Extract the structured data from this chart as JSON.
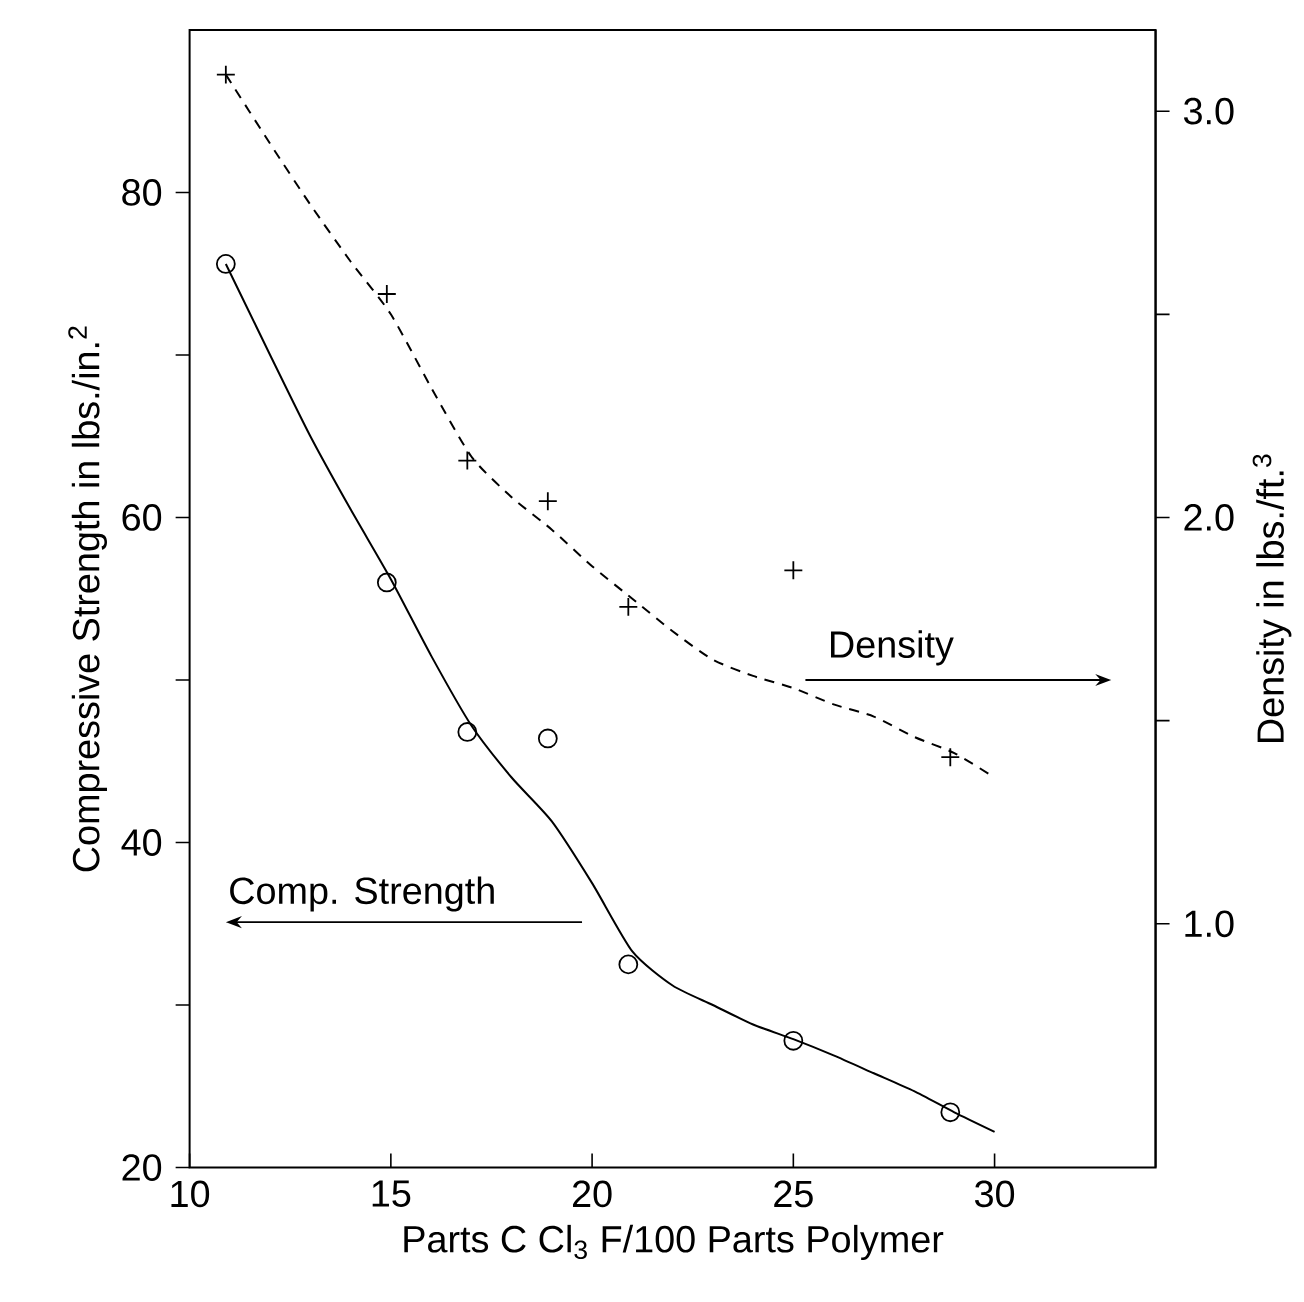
{
  "chart_data": {
    "type": "scatter",
    "xlabel": "Parts C Cl$_{3}$ F/100 Parts Polymer",
    "ylabel": "Compressive  Strength in lbs./in.$^{2}$",
    "y2label": "Density in lbs./ft.$^{3}$",
    "xlim": [
      10,
      34
    ],
    "xticks": [
      10,
      15,
      20,
      25,
      30
    ],
    "ylim": [
      20,
      90
    ],
    "yticks": [
      20,
      {
        "value": 30,
        "label": null
      },
      40,
      {
        "value": 50,
        "label": null
      },
      60,
      {
        "value": 70,
        "label": null
      },
      80
    ],
    "y2lim": [
      0.4,
      3.2
    ],
    "y2ticks": [
      {
        "value": 1.0,
        "label": "1.0"
      },
      {
        "value": 1.5,
        "label": null
      },
      {
        "value": 2.0,
        "label": "2.0"
      },
      {
        "value": 2.5,
        "label": null
      },
      {
        "value": 3.0,
        "label": "3.0"
      }
    ],
    "grid": false,
    "annotations": [
      "Comp. Strength",
      "Density"
    ],
    "series": [
      {
        "marker": "circle",
        "color": "#000000",
        "x": [
          10.9,
          14.9,
          16.9,
          18.9,
          20.9,
          25,
          28.9
        ],
        "values": [
          75.6,
          56.0,
          46.8,
          46.4,
          32.5,
          27.8,
          23.4
        ]
      },
      {
        "type": "line",
        "marker": "none",
        "line_style": "solid",
        "color": "#000000",
        "x": [
          10.9,
          12,
          13,
          14,
          15,
          16,
          17,
          18,
          19,
          20,
          21,
          22,
          23,
          24,
          25,
          26,
          27,
          28,
          29,
          30
        ],
        "values": [
          75.6,
          70,
          65,
          60.5,
          56.2,
          51.5,
          47.2,
          44.0,
          41.3,
          37.5,
          33.3,
          31.2,
          30.0,
          28.8,
          27.9,
          26.9,
          25.8,
          24.7,
          23.4,
          22.2
        ]
      },
      {
        "marker": "cross",
        "color": "#000000",
        "axis": "y2",
        "x": [
          10.9,
          14.9,
          16.9,
          18.9,
          20.9,
          25,
          28.9
        ],
        "values": [
          3.09,
          2.55,
          2.14,
          2.04,
          1.78,
          1.87,
          1.41
        ]
      },
      {
        "type": "line",
        "marker": "none",
        "line_style": "dashed",
        "color": "#000000",
        "axis": "y2",
        "x": [
          10.9,
          12,
          13,
          14,
          15,
          16,
          17,
          18,
          19,
          20,
          21,
          22,
          23,
          24,
          25,
          26,
          27,
          28,
          29,
          30
        ],
        "values": [
          3.09,
          2.92,
          2.77,
          2.63,
          2.5,
          2.32,
          2.15,
          2.05,
          1.97,
          1.88,
          1.8,
          1.72,
          1.65,
          1.61,
          1.58,
          1.54,
          1.51,
          1.46,
          1.42,
          1.36
        ]
      }
    ]
  }
}
